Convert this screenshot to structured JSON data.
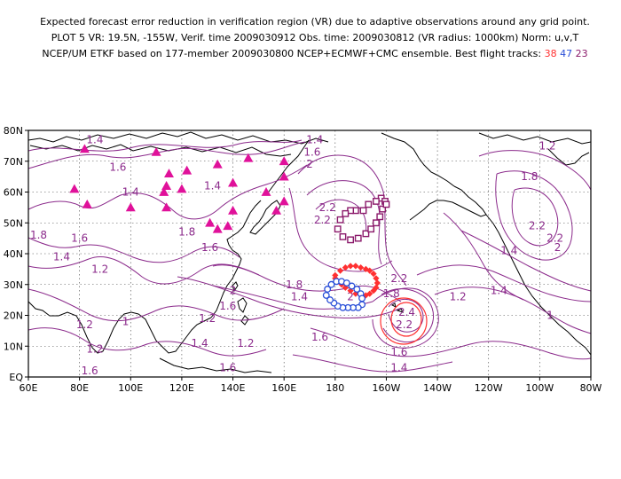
{
  "header": {
    "line1": "Expected forecast error reduction in verification region (VR) due to adaptive observations around any grid point.",
    "line2": "PLOT 5 VR: 19.5N, -155W, Verif. time 2009030912 Obs. time: 2009030812 (VR radius: 1000km) Norm: u,v,T",
    "line3_prefix": "NCEP/UM ETKF based on 177-member 2009030800 NCEP+ECMWF+CMC ensemble. Best flight tracks:",
    "tracks": [
      {
        "id": "38",
        "color": "#ff3030"
      },
      {
        "id": "47",
        "color": "#2a4fd8"
      },
      {
        "id": "23",
        "color": "#8b1a6b"
      }
    ]
  },
  "map": {
    "lon_range": [
      60,
      280
    ],
    "lat_range": [
      0,
      80
    ],
    "x_ticks": [
      {
        "lon": 60,
        "label": "60E"
      },
      {
        "lon": 80,
        "label": "80E"
      },
      {
        "lon": 100,
        "label": "100E"
      },
      {
        "lon": 120,
        "label": "120E"
      },
      {
        "lon": 140,
        "label": "140E"
      },
      {
        "lon": 160,
        "label": "160E"
      },
      {
        "lon": 180,
        "label": "180"
      },
      {
        "lon": 200,
        "label": "160W"
      },
      {
        "lon": 220,
        "label": "140W"
      },
      {
        "lon": 240,
        "label": "120W"
      },
      {
        "lon": 260,
        "label": "100W"
      },
      {
        "lon": 280,
        "label": "80W"
      }
    ],
    "y_ticks": [
      {
        "lat": 0,
        "label": "EQ"
      },
      {
        "lat": 10,
        "label": "10N"
      },
      {
        "lat": 20,
        "label": "20N"
      },
      {
        "lat": 30,
        "label": "30N"
      },
      {
        "lat": 40,
        "label": "40N"
      },
      {
        "lat": 50,
        "label": "50N"
      },
      {
        "lat": 60,
        "label": "60N"
      },
      {
        "lat": 70,
        "label": "70N"
      },
      {
        "lat": 80,
        "label": "80N"
      }
    ],
    "colors": {
      "contour": "#8b2a8b",
      "coast": "#000000",
      "grid": "#444444",
      "triangle": "#e0119a",
      "verification_circle": "#ff3030"
    },
    "contour_labels": [
      {
        "text": "1.4",
        "lon": 86,
        "lat": 77
      },
      {
        "text": "1.6",
        "lon": 95,
        "lat": 68
      },
      {
        "text": "1.4",
        "lon": 100,
        "lat": 60
      },
      {
        "text": "1.8",
        "lon": 64,
        "lat": 46
      },
      {
        "text": "1.6",
        "lon": 80,
        "lat": 45
      },
      {
        "text": "1.4",
        "lon": 73,
        "lat": 39
      },
      {
        "text": "1.2",
        "lon": 88,
        "lat": 35
      },
      {
        "text": "1.4",
        "lon": 132,
        "lat": 62
      },
      {
        "text": "1.8",
        "lon": 122,
        "lat": 47
      },
      {
        "text": "1.6",
        "lon": 131,
        "lat": 42
      },
      {
        "text": "2",
        "lon": 140,
        "lat": 28
      },
      {
        "text": "1.6",
        "lon": 138,
        "lat": 23
      },
      {
        "text": "1.8",
        "lon": 164,
        "lat": 30
      },
      {
        "text": "1.4",
        "lon": 166,
        "lat": 26
      },
      {
        "text": "1.2",
        "lon": 130,
        "lat": 19
      },
      {
        "text": "1.4",
        "lon": 127,
        "lat": 11
      },
      {
        "text": "1.2",
        "lon": 145,
        "lat": 11
      },
      {
        "text": "1.6",
        "lon": 138,
        "lat": 3
      },
      {
        "text": "1.2",
        "lon": 82,
        "lat": 17
      },
      {
        "text": "1",
        "lon": 98,
        "lat": 18
      },
      {
        "text": "1.2",
        "lon": 86,
        "lat": 9
      },
      {
        "text": "1.6",
        "lon": 84,
        "lat": 2
      },
      {
        "text": "1.6",
        "lon": 174,
        "lat": 13
      },
      {
        "text": "1.4",
        "lon": 172,
        "lat": 77
      },
      {
        "text": "1.6",
        "lon": 171,
        "lat": 73
      },
      {
        "text": "2",
        "lon": 170,
        "lat": 69
      },
      {
        "text": "2.2",
        "lon": 177,
        "lat": 55
      },
      {
        "text": "2.2",
        "lon": 175,
        "lat": 51
      },
      {
        "text": "2.2",
        "lon": 205,
        "lat": 32
      },
      {
        "text": "1.8",
        "lon": 202,
        "lat": 27
      },
      {
        "text": "2.4",
        "lon": 208,
        "lat": 21
      },
      {
        "text": "2.2",
        "lon": 207,
        "lat": 17
      },
      {
        "text": "1.2",
        "lon": 228,
        "lat": 26
      },
      {
        "text": "1.4",
        "lon": 244,
        "lat": 28
      },
      {
        "text": "1.4",
        "lon": 248,
        "lat": 41
      },
      {
        "text": "1.6",
        "lon": 205,
        "lat": 8
      },
      {
        "text": "1.4",
        "lon": 205,
        "lat": 3
      },
      {
        "text": "1.2",
        "lon": 263,
        "lat": 75
      },
      {
        "text": "1.8",
        "lon": 256,
        "lat": 65
      },
      {
        "text": "2.2",
        "lon": 259,
        "lat": 49
      },
      {
        "text": "2.2",
        "lon": 266,
        "lat": 45
      },
      {
        "text": "2",
        "lon": 267,
        "lat": 42
      },
      {
        "text": "1",
        "lon": 264,
        "lat": 20
      },
      {
        "text": "2",
        "lon": 184,
        "lat": 30
      },
      {
        "text": "2",
        "lon": 186,
        "lat": 26
      }
    ],
    "triangles": [
      {
        "lon": 82,
        "lat": 74
      },
      {
        "lon": 78,
        "lat": 61
      },
      {
        "lon": 83,
        "lat": 56
      },
      {
        "lon": 110,
        "lat": 73
      },
      {
        "lon": 122,
        "lat": 67
      },
      {
        "lon": 134,
        "lat": 69
      },
      {
        "lon": 146,
        "lat": 71
      },
      {
        "lon": 160,
        "lat": 70
      },
      {
        "lon": 115,
        "lat": 66
      },
      {
        "lon": 114,
        "lat": 62
      },
      {
        "lon": 113,
        "lat": 60
      },
      {
        "lon": 120,
        "lat": 61
      },
      {
        "lon": 114,
        "lat": 55
      },
      {
        "lon": 100,
        "lat": 55
      },
      {
        "lon": 153,
        "lat": 60
      },
      {
        "lon": 160,
        "lat": 65
      },
      {
        "lon": 160,
        "lat": 57
      },
      {
        "lon": 157,
        "lat": 54
      },
      {
        "lon": 140,
        "lat": 63
      },
      {
        "lon": 140,
        "lat": 54
      },
      {
        "lon": 131,
        "lat": 50
      },
      {
        "lon": 134,
        "lat": 48
      },
      {
        "lon": 138,
        "lat": 49
      }
    ],
    "flight_tracks": [
      {
        "id": "23",
        "marker": "square",
        "points": [
          {
            "lon": 198,
            "lat": 58
          },
          {
            "lon": 196,
            "lat": 57
          },
          {
            "lon": 193,
            "lat": 56
          },
          {
            "lon": 191,
            "lat": 54
          },
          {
            "lon": 188,
            "lat": 54
          },
          {
            "lon": 186,
            "lat": 54
          },
          {
            "lon": 184,
            "lat": 53
          },
          {
            "lon": 182,
            "lat": 51
          },
          {
            "lon": 181,
            "lat": 48
          },
          {
            "lon": 183,
            "lat": 45.5
          },
          {
            "lon": 186,
            "lat": 44.5
          },
          {
            "lon": 189,
            "lat": 45
          },
          {
            "lon": 192,
            "lat": 46.5
          },
          {
            "lon": 194,
            "lat": 48
          },
          {
            "lon": 196,
            "lat": 50
          },
          {
            "lon": 197.5,
            "lat": 52
          },
          {
            "lon": 198.5,
            "lat": 54.5
          },
          {
            "lon": 199.5,
            "lat": 57
          },
          {
            "lon": 200,
            "lat": 56
          }
        ]
      },
      {
        "id": "38",
        "marker": "diamond",
        "points": [
          {
            "lon": 180,
            "lat": 33
          },
          {
            "lon": 182,
            "lat": 34.5
          },
          {
            "lon": 184,
            "lat": 35.5
          },
          {
            "lon": 186,
            "lat": 36
          },
          {
            "lon": 188,
            "lat": 36
          },
          {
            "lon": 190,
            "lat": 35.5
          },
          {
            "lon": 192,
            "lat": 35
          },
          {
            "lon": 193.5,
            "lat": 34.5
          },
          {
            "lon": 195,
            "lat": 33.5
          },
          {
            "lon": 196,
            "lat": 32
          },
          {
            "lon": 196.5,
            "lat": 30.5
          },
          {
            "lon": 196,
            "lat": 29
          },
          {
            "lon": 195,
            "lat": 28
          },
          {
            "lon": 193.5,
            "lat": 27
          },
          {
            "lon": 192,
            "lat": 26.5
          },
          {
            "lon": 190,
            "lat": 26.5
          },
          {
            "lon": 188,
            "lat": 27
          },
          {
            "lon": 186,
            "lat": 28
          },
          {
            "lon": 184,
            "lat": 29
          },
          {
            "lon": 182.5,
            "lat": 30
          },
          {
            "lon": 181,
            "lat": 31
          },
          {
            "lon": 180,
            "lat": 32
          }
        ]
      },
      {
        "id": "47",
        "marker": "circle",
        "points": [
          {
            "lon": 176.5,
            "lat": 26.5
          },
          {
            "lon": 177,
            "lat": 28.5
          },
          {
            "lon": 178.5,
            "lat": 30
          },
          {
            "lon": 180.5,
            "lat": 31
          },
          {
            "lon": 182.5,
            "lat": 31
          },
          {
            "lon": 184.5,
            "lat": 30.5
          },
          {
            "lon": 186.5,
            "lat": 29.5
          },
          {
            "lon": 188.5,
            "lat": 28.5
          },
          {
            "lon": 190,
            "lat": 27
          },
          {
            "lon": 190.5,
            "lat": 25.5
          },
          {
            "lon": 190.5,
            "lat": 23.5
          },
          {
            "lon": 189,
            "lat": 22.5
          },
          {
            "lon": 187,
            "lat": 22.5
          },
          {
            "lon": 185,
            "lat": 22.5
          },
          {
            "lon": 183,
            "lat": 22.5
          },
          {
            "lon": 181,
            "lat": 23
          },
          {
            "lon": 179.5,
            "lat": 24
          },
          {
            "lon": 178,
            "lat": 25
          }
        ]
      }
    ]
  }
}
